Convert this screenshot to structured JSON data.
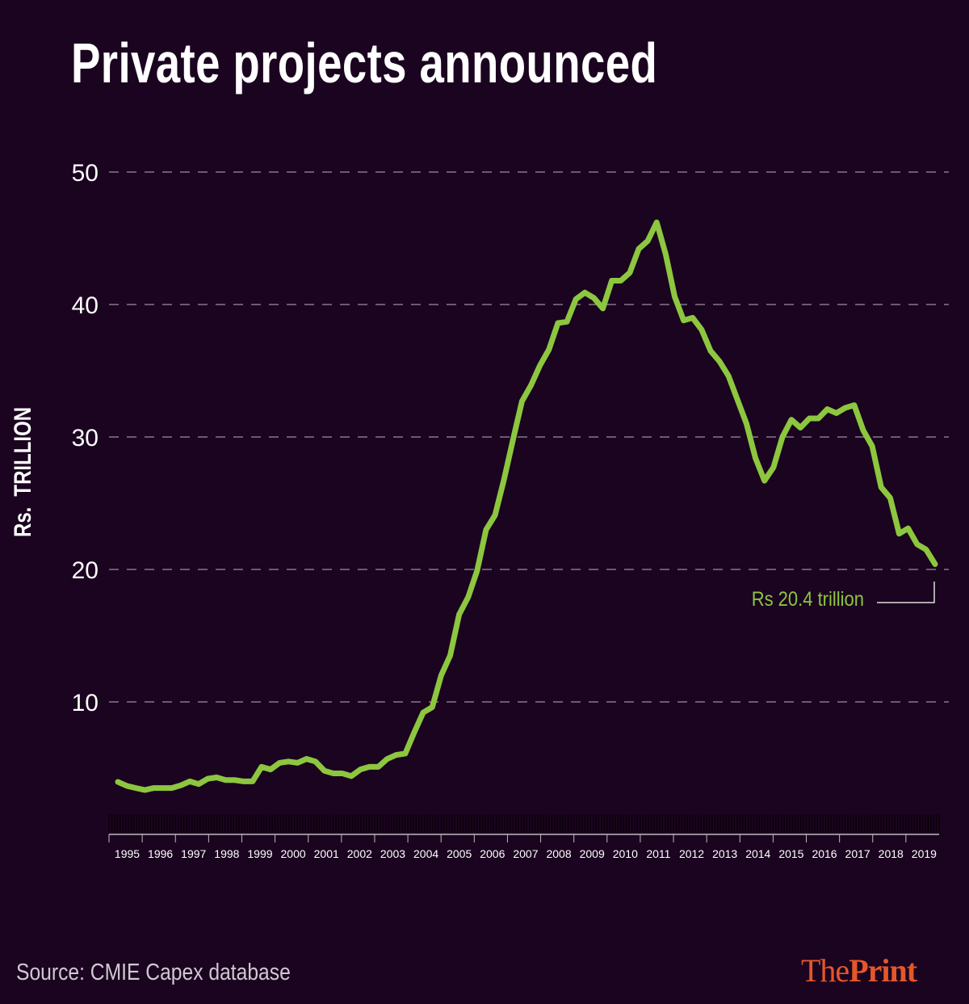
{
  "title": "Private projects announced",
  "source": "Source: CMIE Capex database",
  "logo": {
    "part1": "The",
    "part2": "Print"
  },
  "colors": {
    "background": "#1b0420",
    "line": "#8dc63f",
    "logo": "#e4572a",
    "grid": "#9a8fa0"
  },
  "chart_data": {
    "type": "line",
    "title": "Private projects announced",
    "ylabel": "Rs. TRILLION",
    "xlabel": "",
    "ylim": [
      0,
      50
    ],
    "yticks": [
      10,
      20,
      30,
      40,
      50
    ],
    "grid": "horizontal dashed",
    "x_tick_labels": [
      "1995",
      "1996",
      "1997",
      "1998",
      "1999",
      "2000",
      "2001",
      "2002",
      "2003",
      "2004",
      "2005",
      "2006",
      "2007",
      "2008",
      "2009",
      "2010",
      "2011",
      "2012",
      "2013",
      "2014",
      "2015",
      "2016",
      "2017",
      "2018",
      "2019"
    ],
    "x_frequency": "quarterly, 1995 to 2019",
    "series": [
      {
        "values": [
          3.96,
          3.66,
          3.5,
          3.35,
          3.5,
          3.5,
          3.5,
          3.7,
          4.0,
          3.8,
          4.2,
          4.3,
          4.1,
          4.1,
          4.0,
          4.0,
          5.1,
          4.9,
          5.4,
          5.5,
          5.4,
          5.7,
          5.5,
          4.8,
          4.6,
          4.6,
          4.4,
          4.9,
          5.1,
          5.1,
          5.7,
          6.0,
          6.1,
          7.7,
          9.2,
          9.6,
          12.0,
          13.5,
          16.6,
          17.9,
          19.9,
          23.0,
          24.1,
          26.8,
          29.8,
          32.7,
          33.9,
          35.4,
          36.6,
          38.6,
          38.7,
          40.4,
          40.9,
          40.5,
          39.7,
          41.8,
          41.8,
          42.4,
          44.2,
          44.8,
          46.2,
          43.8,
          40.6,
          38.8,
          39.0,
          38.1,
          36.5,
          35.7,
          34.6,
          32.8,
          31.0,
          28.4,
          26.7,
          27.7,
          30.0,
          31.3,
          30.7,
          31.4,
          31.4,
          32.1,
          31.8,
          32.2,
          32.4,
          30.5,
          29.3,
          26.2,
          25.4,
          22.7,
          23.1,
          21.9,
          21.5,
          20.4
        ]
      }
    ],
    "annotations": [
      {
        "text": "Rs 20.4 trillion",
        "value": 20.4
      }
    ]
  }
}
